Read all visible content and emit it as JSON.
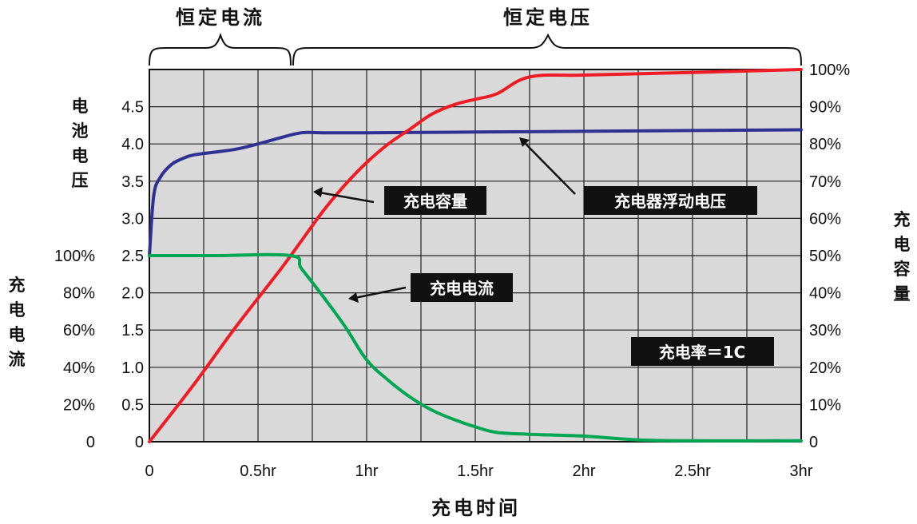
{
  "chart_data": {
    "type": "line",
    "title": "",
    "phases": [
      "恒定电流",
      "恒定电压"
    ],
    "xlabel": "充电时间",
    "xlim": [
      0,
      3
    ],
    "x_ticks": [
      {
        "v": 0,
        "label": "0"
      },
      {
        "v": 0.5,
        "label": "0.5hr"
      },
      {
        "v": 1,
        "label": "1hr"
      },
      {
        "v": 1.5,
        "label": "1.5hr"
      },
      {
        "v": 2,
        "label": "2hr"
      },
      {
        "v": 2.5,
        "label": "2.5hr"
      },
      {
        "v": 3,
        "label": "3hr"
      }
    ],
    "y_voltage": {
      "label": "电池电压",
      "ticks": [
        {
          "v": 0,
          "label": "0"
        },
        {
          "v": 0.5,
          "label": "0.5"
        },
        {
          "v": 1.0,
          "label": "1.0"
        },
        {
          "v": 1.5,
          "label": "1.5"
        },
        {
          "v": 2.0,
          "label": "2.0"
        },
        {
          "v": 2.5,
          "label": "2.5"
        },
        {
          "v": 3.0,
          "label": "3.0"
        },
        {
          "v": 3.5,
          "label": "3.5"
        },
        {
          "v": 4.0,
          "label": "4.0"
        },
        {
          "v": 4.5,
          "label": "4.5"
        }
      ],
      "lim": [
        0,
        5.0
      ]
    },
    "y_current": {
      "label": "充电电流",
      "ticks": [
        {
          "v": 0,
          "label": "0"
        },
        {
          "v": 20,
          "label": "20%"
        },
        {
          "v": 40,
          "label": "40%"
        },
        {
          "v": 60,
          "label": "60%"
        },
        {
          "v": 80,
          "label": "80%"
        },
        {
          "v": 100,
          "label": "100%"
        }
      ],
      "lim": [
        0,
        200
      ]
    },
    "y_capacity": {
      "label": "充电容量",
      "ticks": [
        {
          "v": 0,
          "label": "0"
        },
        {
          "v": 10,
          "label": "10%"
        },
        {
          "v": 20,
          "label": "20%"
        },
        {
          "v": 30,
          "label": "30%"
        },
        {
          "v": 40,
          "label": "40%"
        },
        {
          "v": 50,
          "label": "50%"
        },
        {
          "v": 60,
          "label": "60%"
        },
        {
          "v": 70,
          "label": "70%"
        },
        {
          "v": 80,
          "label": "80%"
        },
        {
          "v": 90,
          "label": "90%"
        },
        {
          "v": 100,
          "label": "100%"
        }
      ],
      "lim": [
        0,
        100
      ]
    },
    "series": [
      {
        "name": "充电器浮动电压",
        "axis": "voltage",
        "color": "#2e3192",
        "x": [
          0,
          0.02,
          0.05,
          0.1,
          0.15,
          0.2,
          0.3,
          0.4,
          0.5,
          0.6,
          0.7,
          0.8,
          1.0,
          1.5,
          2.0,
          2.5,
          3.0
        ],
        "y": [
          2.5,
          3.3,
          3.55,
          3.72,
          3.8,
          3.85,
          3.89,
          3.93,
          4.0,
          4.08,
          4.15,
          4.15,
          4.15,
          4.16,
          4.17,
          4.18,
          4.19
        ]
      },
      {
        "name": "充电容量",
        "axis": "capacity",
        "color": "#ee1c25",
        "x": [
          0,
          0.2,
          0.4,
          0.6,
          0.7,
          0.8,
          0.9,
          1.0,
          1.1,
          1.2,
          1.3,
          1.4,
          1.5,
          1.6,
          1.75,
          2.0,
          2.5,
          3.0
        ],
        "y": [
          0,
          15,
          31,
          46,
          54,
          62,
          69,
          75,
          80,
          84,
          88,
          90.5,
          92,
          93.5,
          98,
          98.5,
          99.2,
          100
        ]
      },
      {
        "name": "充电电流",
        "axis": "current",
        "color": "#00a651",
        "x": [
          0,
          0.3,
          0.65,
          0.7,
          0.8,
          0.9,
          1.0,
          1.1,
          1.2,
          1.3,
          1.4,
          1.5,
          1.6,
          1.75,
          2.0,
          2.25,
          2.5,
          3.0
        ],
        "y": [
          100,
          100,
          100,
          93,
          78,
          62,
          44,
          33,
          24,
          17,
          12,
          8,
          5,
          4,
          3,
          1,
          0.5,
          0.5
        ]
      }
    ],
    "annotations": [
      {
        "text": "充电容量",
        "series": "充电容量"
      },
      {
        "text": "充电器浮动电压",
        "series": "充电器浮动电压"
      },
      {
        "text": "充电电流",
        "series": "充电电流"
      },
      {
        "text": "充电率＝1C",
        "series": ""
      }
    ],
    "grid": true,
    "colors": {
      "plot_bg": "#d9d9d9",
      "grid": "#222222"
    }
  }
}
